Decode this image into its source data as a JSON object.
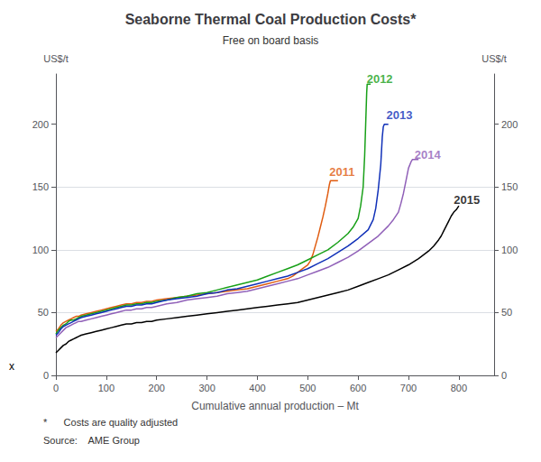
{
  "chart_data": {
    "type": "line",
    "title": "Seaborne Thermal Coal Production Costs*",
    "subtitle": "Free on board basis",
    "xlabel": "Cumulative annual production – Mt",
    "ylabel": "US$/t",
    "y2label": "US$/t",
    "footnotes": [
      "*      Costs are quality adjusted",
      "Source:    AME Group"
    ],
    "xlim": [
      0,
      870
    ],
    "xticks": [
      0,
      100,
      200,
      300,
      400,
      500,
      600,
      700,
      800
    ],
    "ylim": [
      0,
      240
    ],
    "yticks": [
      0,
      50,
      100,
      150,
      200
    ],
    "y2lim": [
      0,
      240
    ],
    "y2ticks": [
      0,
      50,
      100,
      150,
      200
    ],
    "grid": true,
    "annotations": [
      {
        "text": "2011",
        "x": 543,
        "y": 162,
        "color": "#e05c10"
      },
      {
        "text": "2012",
        "x": 617,
        "y": 236,
        "color": "#18a018"
      },
      {
        "text": "2013",
        "x": 656,
        "y": 207,
        "color": "#1030b8"
      },
      {
        "text": "2014",
        "x": 712,
        "y": 176,
        "color": "#9060b8"
      },
      {
        "text": "2015",
        "x": 790,
        "y": 140,
        "color": "#000000"
      },
      {
        "text": "x"
      }
    ],
    "series": [
      {
        "name": "2011",
        "color": "#e05c10",
        "x": [
          0,
          5,
          10,
          15,
          20,
          25,
          30,
          35,
          40,
          45,
          50,
          60,
          70,
          80,
          90,
          100,
          110,
          120,
          130,
          140,
          150,
          160,
          170,
          180,
          190,
          200,
          220,
          240,
          260,
          280,
          300,
          320,
          340,
          360,
          380,
          400,
          420,
          440,
          460,
          470,
          480,
          490,
          500,
          505,
          510,
          515,
          520,
          525,
          530,
          535,
          540,
          543,
          545,
          548,
          550,
          552,
          555,
          558,
          560
        ],
        "values": [
          35,
          37,
          40,
          42,
          43,
          44,
          45,
          46,
          47,
          47,
          48,
          49,
          50,
          51,
          52,
          53,
          54,
          55,
          56,
          57,
          57,
          58,
          58,
          59,
          59,
          60,
          61,
          62,
          63,
          64,
          65,
          66,
          67,
          68,
          69,
          71,
          73,
          75,
          77,
          79,
          82,
          85,
          88,
          91,
          96,
          103,
          110,
          118,
          126,
          135,
          145,
          152,
          155,
          155,
          155,
          155,
          155,
          155,
          155
        ]
      },
      {
        "name": "2012",
        "color": "#18a018",
        "x": [
          0,
          5,
          10,
          15,
          20,
          25,
          30,
          35,
          40,
          45,
          50,
          60,
          70,
          80,
          90,
          100,
          110,
          120,
          130,
          140,
          150,
          160,
          170,
          180,
          190,
          200,
          220,
          240,
          260,
          280,
          300,
          320,
          340,
          360,
          380,
          400,
          420,
          440,
          460,
          480,
          500,
          520,
          540,
          560,
          580,
          590,
          600,
          605,
          610,
          613,
          615,
          617,
          618,
          620,
          622,
          625
        ],
        "values": [
          33,
          36,
          38,
          40,
          41,
          43,
          44,
          44,
          45,
          46,
          47,
          48,
          49,
          50,
          51,
          52,
          53,
          54,
          55,
          56,
          56,
          57,
          57,
          58,
          58,
          59,
          60,
          62,
          63,
          65,
          66,
          68,
          70,
          72,
          74,
          76,
          79,
          82,
          85,
          88,
          92,
          96,
          100,
          106,
          113,
          118,
          125,
          135,
          150,
          175,
          200,
          225,
          232,
          232,
          232,
          232
        ]
      },
      {
        "name": "2013",
        "color": "#1030b8",
        "x": [
          0,
          5,
          10,
          15,
          20,
          25,
          30,
          35,
          40,
          45,
          50,
          60,
          70,
          80,
          90,
          100,
          110,
          120,
          130,
          140,
          150,
          160,
          170,
          180,
          190,
          200,
          220,
          240,
          260,
          280,
          300,
          320,
          340,
          360,
          380,
          400,
          420,
          440,
          460,
          480,
          500,
          520,
          540,
          560,
          580,
          600,
          620,
          630,
          635,
          640,
          645,
          648,
          650,
          652,
          655,
          658,
          660
        ],
        "values": [
          32,
          34,
          37,
          39,
          40,
          41,
          42,
          43,
          44,
          45,
          46,
          47,
          48,
          49,
          50,
          51,
          52,
          53,
          54,
          55,
          55,
          56,
          56,
          57,
          57,
          58,
          60,
          61,
          62,
          63,
          65,
          66,
          68,
          69,
          71,
          73,
          75,
          77,
          79,
          82,
          85,
          89,
          93,
          98,
          103,
          109,
          116,
          124,
          133,
          148,
          168,
          190,
          198,
          200,
          200,
          200,
          200
        ]
      },
      {
        "name": "2014",
        "color": "#9060b8",
        "x": [
          0,
          5,
          10,
          15,
          20,
          25,
          30,
          35,
          40,
          45,
          50,
          60,
          70,
          80,
          90,
          100,
          110,
          120,
          130,
          140,
          150,
          160,
          170,
          180,
          190,
          200,
          220,
          240,
          260,
          280,
          300,
          320,
          340,
          360,
          380,
          400,
          420,
          440,
          460,
          480,
          500,
          520,
          540,
          560,
          580,
          600,
          620,
          640,
          660,
          670,
          680,
          685,
          690,
          695,
          700,
          705,
          708,
          710,
          715,
          718,
          720
        ],
        "values": [
          30,
          32,
          34,
          36,
          38,
          39,
          40,
          41,
          42,
          43,
          43,
          44,
          45,
          46,
          47,
          48,
          49,
          50,
          51,
          52,
          52,
          53,
          53,
          54,
          54,
          55,
          57,
          58,
          60,
          61,
          62,
          63,
          65,
          66,
          67,
          69,
          71,
          73,
          75,
          77,
          80,
          83,
          86,
          90,
          94,
          99,
          105,
          111,
          119,
          124,
          130,
          137,
          145,
          155,
          165,
          170,
          172,
          172,
          172,
          172,
          172
        ]
      },
      {
        "name": "2015",
        "color": "#000000",
        "x": [
          0,
          5,
          10,
          15,
          20,
          25,
          30,
          35,
          40,
          45,
          50,
          60,
          70,
          80,
          90,
          100,
          110,
          120,
          130,
          140,
          150,
          160,
          170,
          180,
          190,
          200,
          220,
          240,
          260,
          280,
          300,
          320,
          340,
          360,
          380,
          400,
          420,
          440,
          460,
          480,
          500,
          520,
          540,
          560,
          580,
          600,
          620,
          640,
          660,
          680,
          700,
          720,
          740,
          750,
          760,
          765,
          770,
          775,
          780,
          785,
          790,
          795,
          800
        ],
        "values": [
          18,
          20,
          22,
          24,
          25,
          27,
          28,
          29,
          30,
          31,
          32,
          33,
          34,
          35,
          36,
          37,
          38,
          39,
          40,
          41,
          41,
          42,
          42,
          43,
          43,
          44,
          45,
          46,
          47,
          48,
          49,
          50,
          51,
          52,
          53,
          54,
          55,
          56,
          57,
          58,
          60,
          62,
          64,
          66,
          68,
          71,
          74,
          77,
          80,
          84,
          88,
          93,
          99,
          103,
          108,
          111,
          115,
          119,
          123,
          127,
          130,
          132,
          135
        ]
      }
    ]
  }
}
